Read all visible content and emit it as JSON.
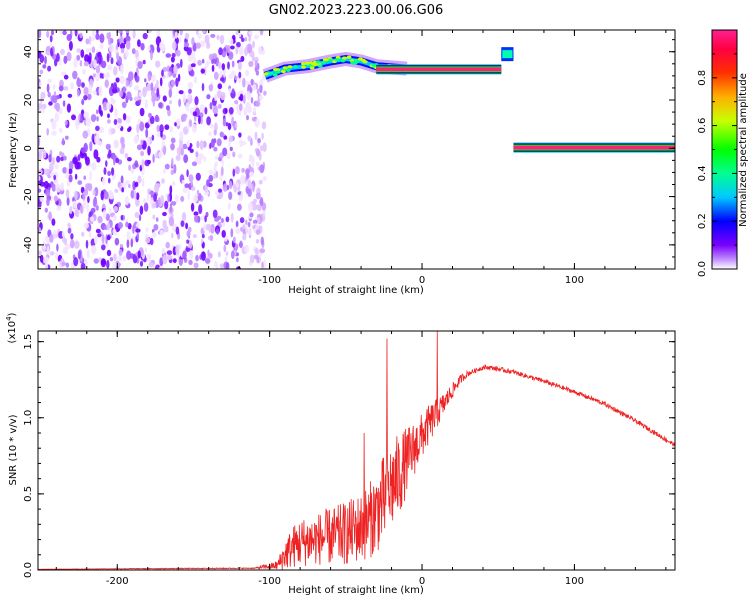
{
  "figure_title": "GN02.2023.223.00.06.G06",
  "chart_data": [
    {
      "type": "heatmap",
      "title": "GN02.2023.223.00.06.G06",
      "xlabel": "Height of straight line (km)",
      "ylabel": "Frequency (Hz)",
      "xlim": [
        -252,
        166
      ],
      "ylim": [
        -50,
        49
      ],
      "x_ticks": [
        -200,
        -100,
        0,
        100
      ],
      "y_ticks": [
        -40,
        -20,
        0,
        20,
        40
      ],
      "colorbar": {
        "label": "Normalized spectral amplitude",
        "range": [
          0,
          1
        ],
        "ticks": [
          "0.0",
          "0.2",
          "0.4",
          "0.6",
          "0.8"
        ],
        "colors": [
          "#ffffff",
          "#7a00ff",
          "#0000ff",
          "#00c8ff",
          "#00ff80",
          "#00ff00",
          "#c8ff00",
          "#ffd000",
          "#ff6000",
          "#ff0040",
          "#ff2090"
        ]
      },
      "features": [
        {
          "name": "noise",
          "x_range": [
            -252,
            -103
          ],
          "freq_range": [
            -50,
            49
          ],
          "amplitude": 0.1
        },
        {
          "name": "rising-track",
          "x": [
            -103,
            -90,
            -75,
            -60,
            -50,
            -40,
            -30,
            -10
          ],
          "freq": [
            30,
            33,
            34,
            36,
            37,
            36,
            34,
            33
          ],
          "amplitude": 0.4
        },
        {
          "name": "main-line",
          "x_range": [
            -30,
            52
          ],
          "freq": 32.7,
          "amplitude": 0.95
        },
        {
          "name": "step",
          "x_range": [
            52,
            60
          ],
          "freq": 39,
          "amplitude": 0.5
        },
        {
          "name": "zero-line",
          "x_range": [
            60,
            166
          ],
          "freq": 0.3,
          "amplitude": 0.95
        }
      ]
    },
    {
      "type": "line",
      "xlabel": "Height of straight line (km)",
      "ylabel": "SNR (10 * v/v)",
      "y_multiplier": "(x10^4)",
      "xlim": [
        -252,
        166
      ],
      "ylim": [
        0,
        1.57
      ],
      "x_ticks": [
        -200,
        -100,
        0,
        100
      ],
      "y_ticks": [
        "0.0",
        "0.5",
        "1.0",
        "1.5"
      ],
      "series_color": "#ee2222",
      "x": [
        -252,
        -200,
        -150,
        -110,
        -95,
        -90,
        -85,
        -80,
        -70,
        -60,
        -50,
        -40,
        -35,
        -30,
        -25,
        -20,
        -15,
        -10,
        -5,
        0,
        5,
        10,
        15,
        20,
        25,
        30,
        35,
        40,
        45,
        50,
        60,
        70,
        80,
        100,
        120,
        140,
        166
      ],
      "y": [
        0.005,
        0.008,
        0.01,
        0.012,
        0.03,
        0.1,
        0.15,
        0.18,
        0.2,
        0.22,
        0.24,
        0.28,
        0.32,
        0.38,
        0.46,
        0.55,
        0.62,
        0.72,
        0.8,
        0.88,
        0.96,
        1.03,
        1.1,
        1.18,
        1.25,
        1.29,
        1.31,
        1.33,
        1.33,
        1.32,
        1.3,
        1.27,
        1.24,
        1.17,
        1.09,
        0.98,
        0.82
      ],
      "noise": [
        0.0,
        0.002,
        0.003,
        0.003,
        0.03,
        0.1,
        0.14,
        0.16,
        0.17,
        0.19,
        0.21,
        0.23,
        0.25,
        0.27,
        0.3,
        0.3,
        0.28,
        0.22,
        0.18,
        0.15,
        0.13,
        0.1,
        0.07,
        0.05,
        0.03,
        0.02,
        0.015,
        0.015,
        0.015,
        0.015,
        0.015,
        0.015,
        0.015,
        0.015,
        0.015,
        0.015,
        0.015
      ],
      "spikes": [
        {
          "x": -23,
          "y": 1.52
        },
        {
          "x": 10,
          "y": 1.57
        },
        {
          "x": -38,
          "y": 0.9
        }
      ]
    }
  ]
}
